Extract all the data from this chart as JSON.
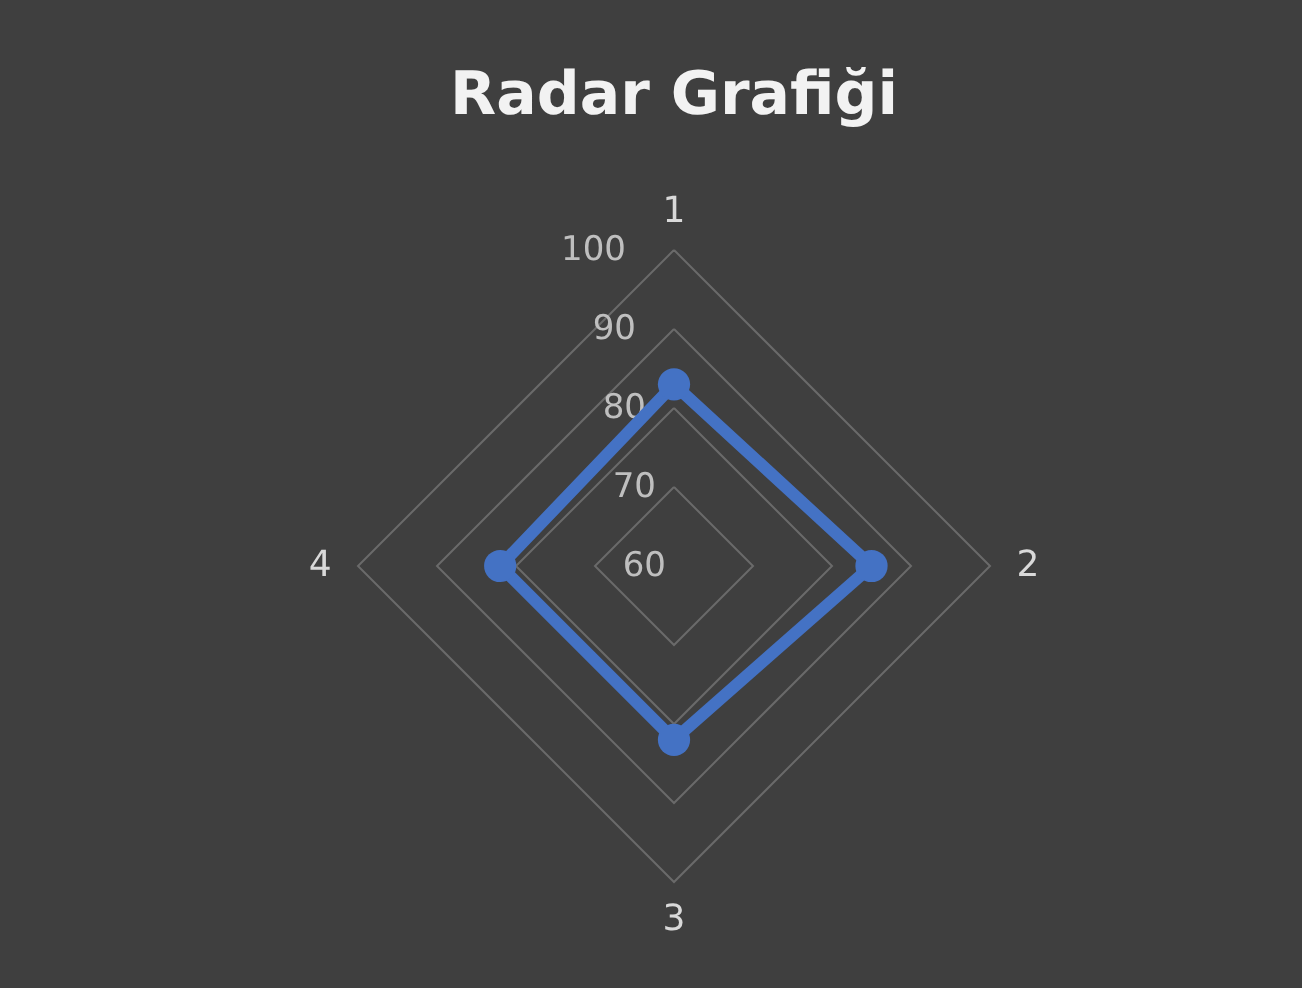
{
  "chart_data": {
    "type": "radar",
    "title": "Radar Grafiği",
    "categories": [
      "1",
      "2",
      "3",
      "4"
    ],
    "series": [
      {
        "color": "#4472c4",
        "values": [
          83,
          85,
          82,
          82
        ]
      }
    ],
    "ylim": [
      60,
      100
    ],
    "yticks": [
      60,
      70,
      80,
      90,
      100
    ],
    "grid": true,
    "marker": "circle",
    "line_style": "solid"
  }
}
